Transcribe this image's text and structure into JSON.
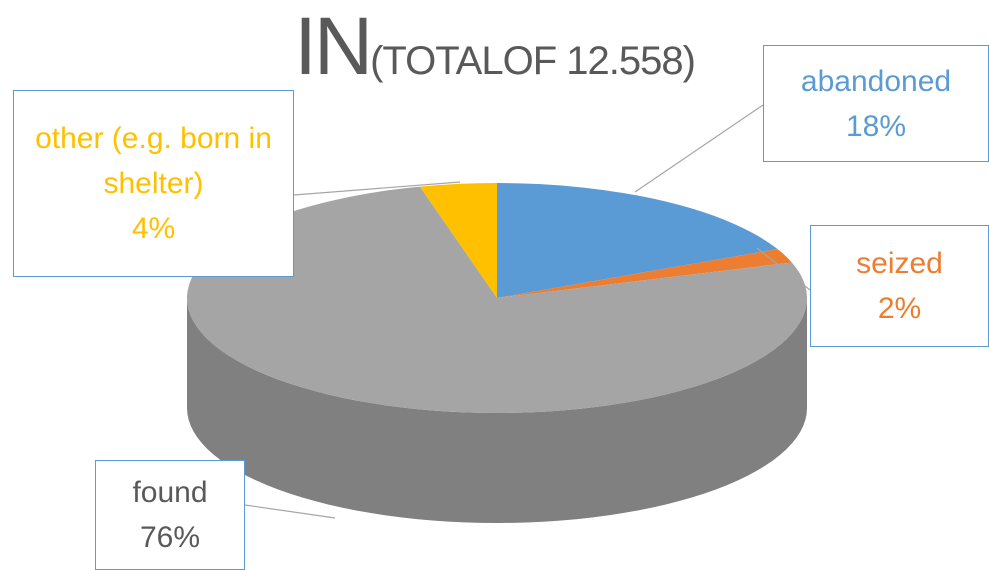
{
  "chart_data": {
    "type": "pie3d",
    "title": "IN",
    "subtitle": "(TOTALOF 12.558)",
    "categories": [
      "abandoned",
      "seized",
      "found",
      "other (e.g. born in shelter)"
    ],
    "values": [
      18,
      2,
      76,
      4
    ],
    "value_labels": [
      "18%",
      "2%",
      "76%",
      "4%"
    ],
    "colors": [
      "#5b9bd5",
      "#ed7d31",
      "#a5a5a5",
      "#ffc000"
    ]
  }
}
